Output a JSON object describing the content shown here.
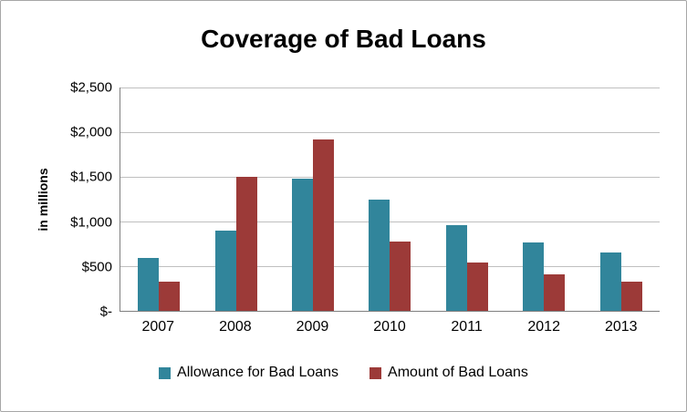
{
  "chart_data": {
    "type": "bar",
    "title": "Coverage of Bad Loans",
    "xlabel": "",
    "ylabel": "in millions",
    "categories": [
      "2007",
      "2008",
      "2009",
      "2010",
      "2011",
      "2012",
      "2013"
    ],
    "series": [
      {
        "name": "Allowance for Bad Loans",
        "color": "#31859B",
        "values": [
          590,
          900,
          1480,
          1250,
          960,
          770,
          650
        ]
      },
      {
        "name": "Amount of Bad Loans",
        "color": "#9C3A38",
        "values": [
          330,
          1500,
          1920,
          780,
          540,
          410,
          330
        ]
      }
    ],
    "ylim": [
      0,
      2500
    ],
    "yticks": [
      {
        "value": 0,
        "label": "$-"
      },
      {
        "value": 500,
        "label": "$500"
      },
      {
        "value": 1000,
        "label": "$1,000"
      },
      {
        "value": 1500,
        "label": "$1,500"
      },
      {
        "value": 2000,
        "label": "$2,000"
      },
      {
        "value": 2500,
        "label": "$2,500"
      }
    ],
    "grid": true,
    "legend_position": "bottom"
  }
}
